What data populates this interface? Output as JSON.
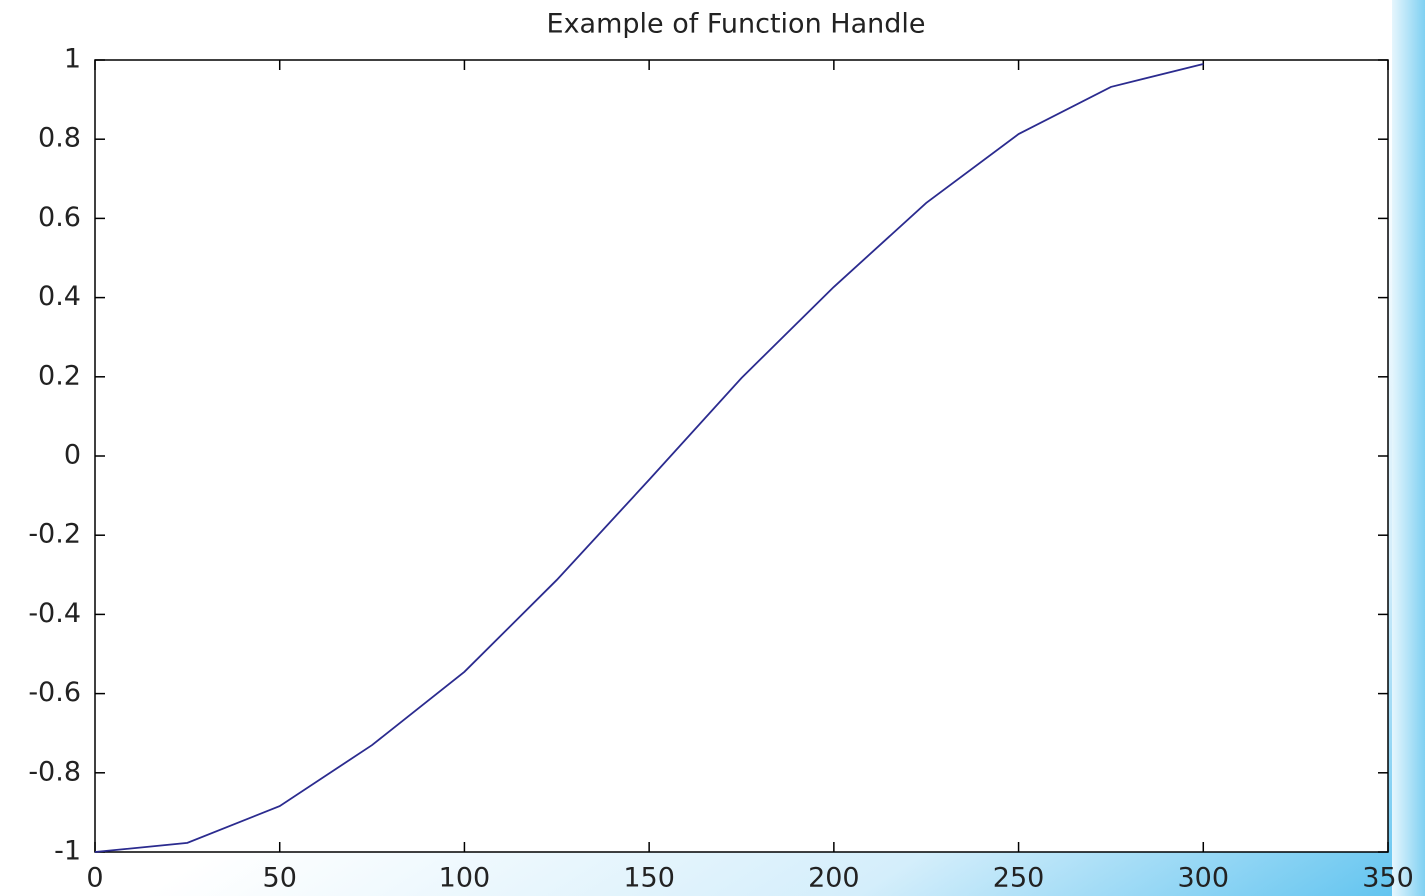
{
  "chart_data": {
    "type": "line",
    "title": "Example of Function Handle",
    "x": [
      0,
      25,
      50,
      75,
      100,
      125,
      150,
      175,
      200,
      225,
      250,
      275,
      300
    ],
    "series": [
      {
        "color": "#2b2b8f",
        "values": [
          -1,
          -0.977,
          -0.884,
          -0.73,
          -0.545,
          -0.313,
          -0.06,
          0.197,
          0.427,
          0.639,
          0.813,
          0.932,
          0.99
        ]
      }
    ],
    "xlim": [
      0,
      350
    ],
    "xticks": [
      0,
      50,
      100,
      150,
      200,
      250,
      300,
      350
    ],
    "ylim": [
      -1,
      1
    ],
    "yticks": [
      -1,
      -0.8,
      -0.6,
      -0.4,
      -0.2,
      0,
      0.2,
      0.4,
      0.6,
      0.8,
      1
    ],
    "grid": false
  }
}
